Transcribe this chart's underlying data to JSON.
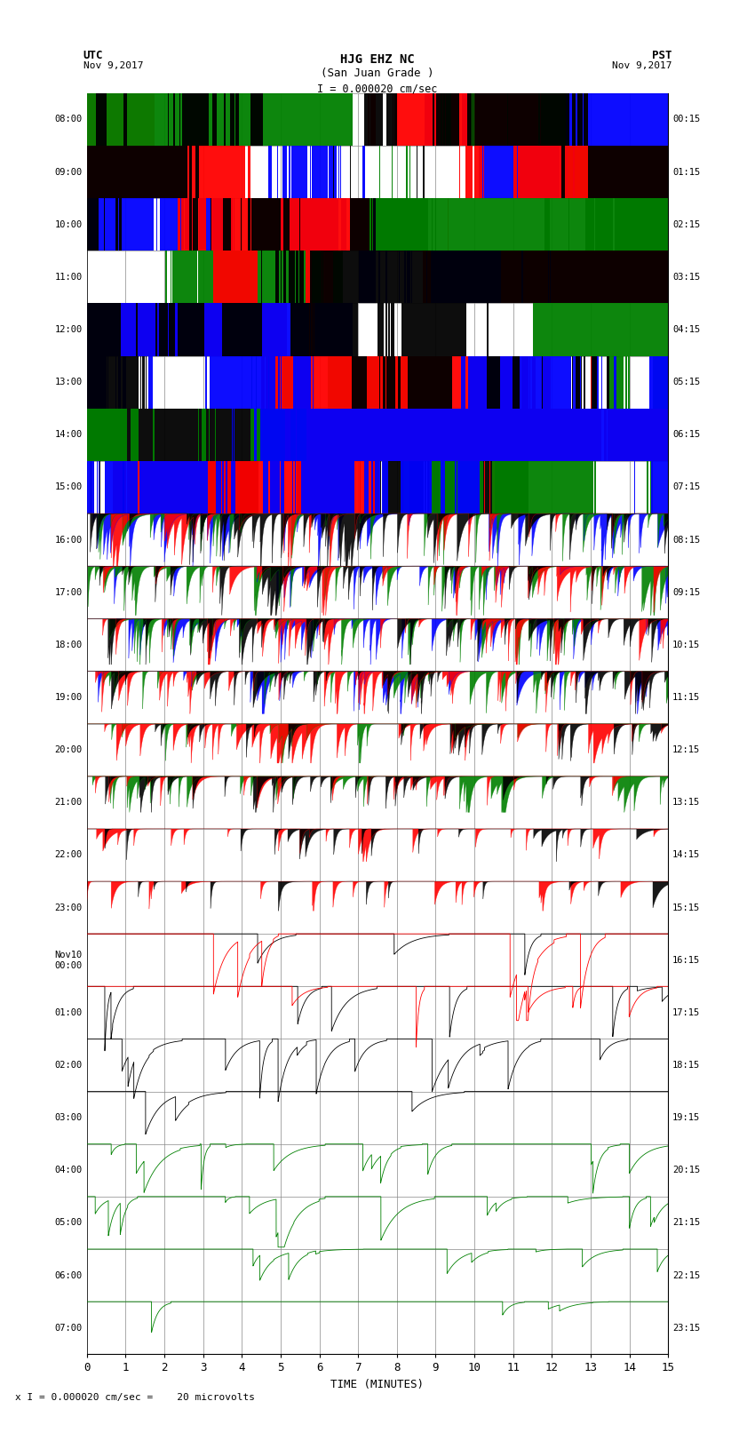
{
  "title_line1": "HJG EHZ NC",
  "title_line2": "(San Juan Grade )",
  "title_line3": "I = 0.000020 cm/sec",
  "footer": "x I = 0.000020 cm/sec =    20 microvolts",
  "xlabel": "TIME (MINUTES)",
  "xlim": [
    0,
    15
  ],
  "xticks": [
    0,
    1,
    2,
    3,
    4,
    5,
    6,
    7,
    8,
    9,
    10,
    11,
    12,
    13,
    14,
    15
  ],
  "left_times_utc": [
    "08:00",
    "09:00",
    "10:00",
    "11:00",
    "12:00",
    "13:00",
    "14:00",
    "15:00",
    "16:00",
    "17:00",
    "18:00",
    "19:00",
    "20:00",
    "21:00",
    "22:00",
    "23:00",
    "Nov10\n00:00",
    "01:00",
    "02:00",
    "03:00",
    "04:00",
    "05:00",
    "06:00",
    "07:00"
  ],
  "right_times_pst": [
    "00:15",
    "01:15",
    "02:15",
    "03:15",
    "04:15",
    "05:15",
    "06:15",
    "07:15",
    "08:15",
    "09:15",
    "10:15",
    "11:15",
    "12:15",
    "13:15",
    "14:15",
    "15:15",
    "16:15",
    "17:15",
    "18:15",
    "19:15",
    "20:15",
    "21:15",
    "22:15",
    "23:15"
  ],
  "n_rows": 24,
  "figsize": [
    8.5,
    16.13
  ],
  "dpi": 100
}
